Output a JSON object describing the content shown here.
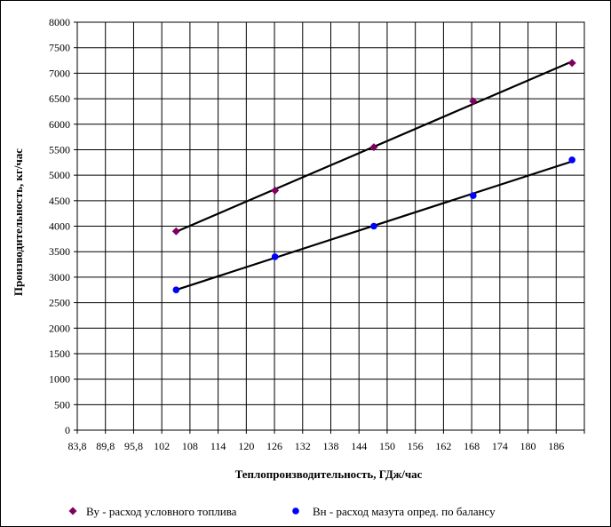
{
  "chart_data": {
    "type": "scatter",
    "title": "",
    "xlabel": "Теплопроизводительность, ГДж/час",
    "ylabel": "Производительность, кг/час",
    "x_tick_labels": [
      "83,8",
      "89,8",
      "95,8",
      "102",
      "108",
      "114",
      "120",
      "126",
      "132",
      "138",
      "144",
      "150",
      "156",
      "162",
      "168",
      "174",
      "180",
      "186"
    ],
    "y_ticks": [
      0,
      500,
      1000,
      1500,
      2000,
      2500,
      3000,
      3500,
      4000,
      4500,
      5000,
      5500,
      6000,
      6500,
      7000,
      7500,
      8000
    ],
    "xlim": [
      83.8,
      191
    ],
    "ylim": [
      0,
      8000
    ],
    "grid": true,
    "legend_position": "bottom",
    "series": [
      {
        "name": "Ву - расход условного топлива",
        "color": "#800060",
        "marker": "diamond",
        "trendline": "linear",
        "x": [
          104.7,
          125.6,
          146.5,
          167.5,
          188.4
        ],
        "y": [
          3900,
          4700,
          5550,
          6450,
          7200
        ]
      },
      {
        "name": "Вн - расход мазута опред. по балансу",
        "color": "#0000ff",
        "marker": "circle",
        "trendline": "linear",
        "x": [
          104.7,
          125.6,
          146.5,
          167.5,
          188.4
        ],
        "y": [
          2750,
          3400,
          4000,
          4600,
          5300
        ]
      }
    ]
  }
}
